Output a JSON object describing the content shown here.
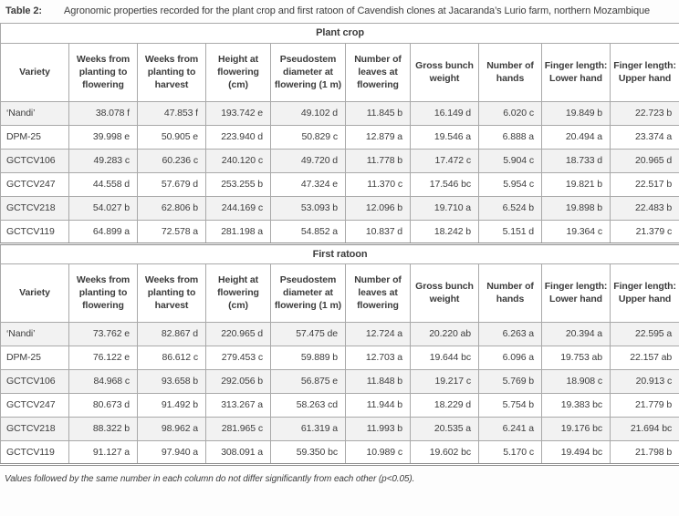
{
  "title": {
    "label": "Table 2:",
    "caption": "Agronomic properties recorded for the plant crop and first ratoon of Cavendish clones at Jacaranda’s Lurio farm, northern Mozambique"
  },
  "table": {
    "columns": [
      "Variety",
      "Weeks from planting to flowering",
      "Weeks from planting to harvest",
      "Height at flowering (cm)",
      "Pseudostem diameter at flowering (1 m)",
      "Number of leaves at flowering",
      "Gross bunch weight",
      "Number of hands",
      "Finger length: Lower hand",
      "Finger length: Upper hand"
    ],
    "sections": [
      {
        "name": "Plant crop",
        "rows": [
          {
            "variety": "‘Nandi’",
            "values": [
              "38.078 f",
              "47.853 f",
              "193.742 e",
              "49.102 d",
              "11.845 b",
              "16.149 d",
              "6.020 c",
              "19.849 b",
              "22.723 b"
            ]
          },
          {
            "variety": "DPM-25",
            "values": [
              "39.998 e",
              "50.905 e",
              "223.940 d",
              "50.829 c",
              "12.879 a",
              "19.546 a",
              "6.888 a",
              "20.494 a",
              "23.374 a"
            ]
          },
          {
            "variety": "GCTCV106",
            "values": [
              "49.283 c",
              "60.236 c",
              "240.120 c",
              "49.720 d",
              "11.778 b",
              "17.472 c",
              "5.904 c",
              "18.733 d",
              "20.965 d"
            ]
          },
          {
            "variety": "GCTCV247",
            "values": [
              "44.558 d",
              "57.679 d",
              "253.255 b",
              "47.324 e",
              "11.370 c",
              "17.546 bc",
              "5.954 c",
              "19.821 b",
              "22.517 b"
            ]
          },
          {
            "variety": "GCTCV218",
            "values": [
              "54.027 b",
              "62.806 b",
              "244.169 c",
              "53.093 b",
              "12.096 b",
              "19.710 a",
              "6.524 b",
              "19.898 b",
              "22.483 b"
            ]
          },
          {
            "variety": "GCTCV119",
            "values": [
              "64.899 a",
              "72.578 a",
              "281.198 a",
              "54.852 a",
              "10.837 d",
              "18.242 b",
              "5.151 d",
              "19.364 c",
              "21.379 c"
            ]
          }
        ]
      },
      {
        "name": "First ratoon",
        "rows": [
          {
            "variety": "‘Nandi’",
            "values": [
              "73.762 e",
              "82.867 d",
              "220.965 d",
              "57.475 de",
              "12.724 a",
              "20.220 ab",
              "6.263 a",
              "20.394 a",
              "22.595 a"
            ]
          },
          {
            "variety": "DPM-25",
            "values": [
              "76.122 e",
              "86.612 c",
              "279.453 c",
              "59.889 b",
              "12.703 a",
              "19.644 bc",
              "6.096 a",
              "19.753 ab",
              "22.157 ab"
            ]
          },
          {
            "variety": "GCTCV106",
            "values": [
              "84.968 c",
              "93.658 b",
              "292.056 b",
              "56.875 e",
              "11.848 b",
              "19.217 c",
              "5.769 b",
              "18.908 c",
              "20.913 c"
            ]
          },
          {
            "variety": "GCTCV247",
            "values": [
              "80.673 d",
              "91.492 b",
              "313.267 a",
              "58.263 cd",
              "11.944 b",
              "18.229 d",
              "5.754 b",
              "19.383 bc",
              "21.779 b"
            ]
          },
          {
            "variety": "GCTCV218",
            "values": [
              "88.322 b",
              "98.962 a",
              "281.965 c",
              "61.319 a",
              "11.993 b",
              "20.535 a",
              "6.241 a",
              "19.176 bc",
              "21.694 bc"
            ]
          },
          {
            "variety": "GCTCV119",
            "values": [
              "91.127 a",
              "97.940 a",
              "308.091 a",
              "59.350 bc",
              "10.989 c",
              "19.602 bc",
              "5.170 c",
              "19.494 bc",
              "21.798 b"
            ]
          }
        ]
      }
    ]
  },
  "footnote": "Values followed by the same number in each column do not differ significantly from each other (p<0.05)."
}
